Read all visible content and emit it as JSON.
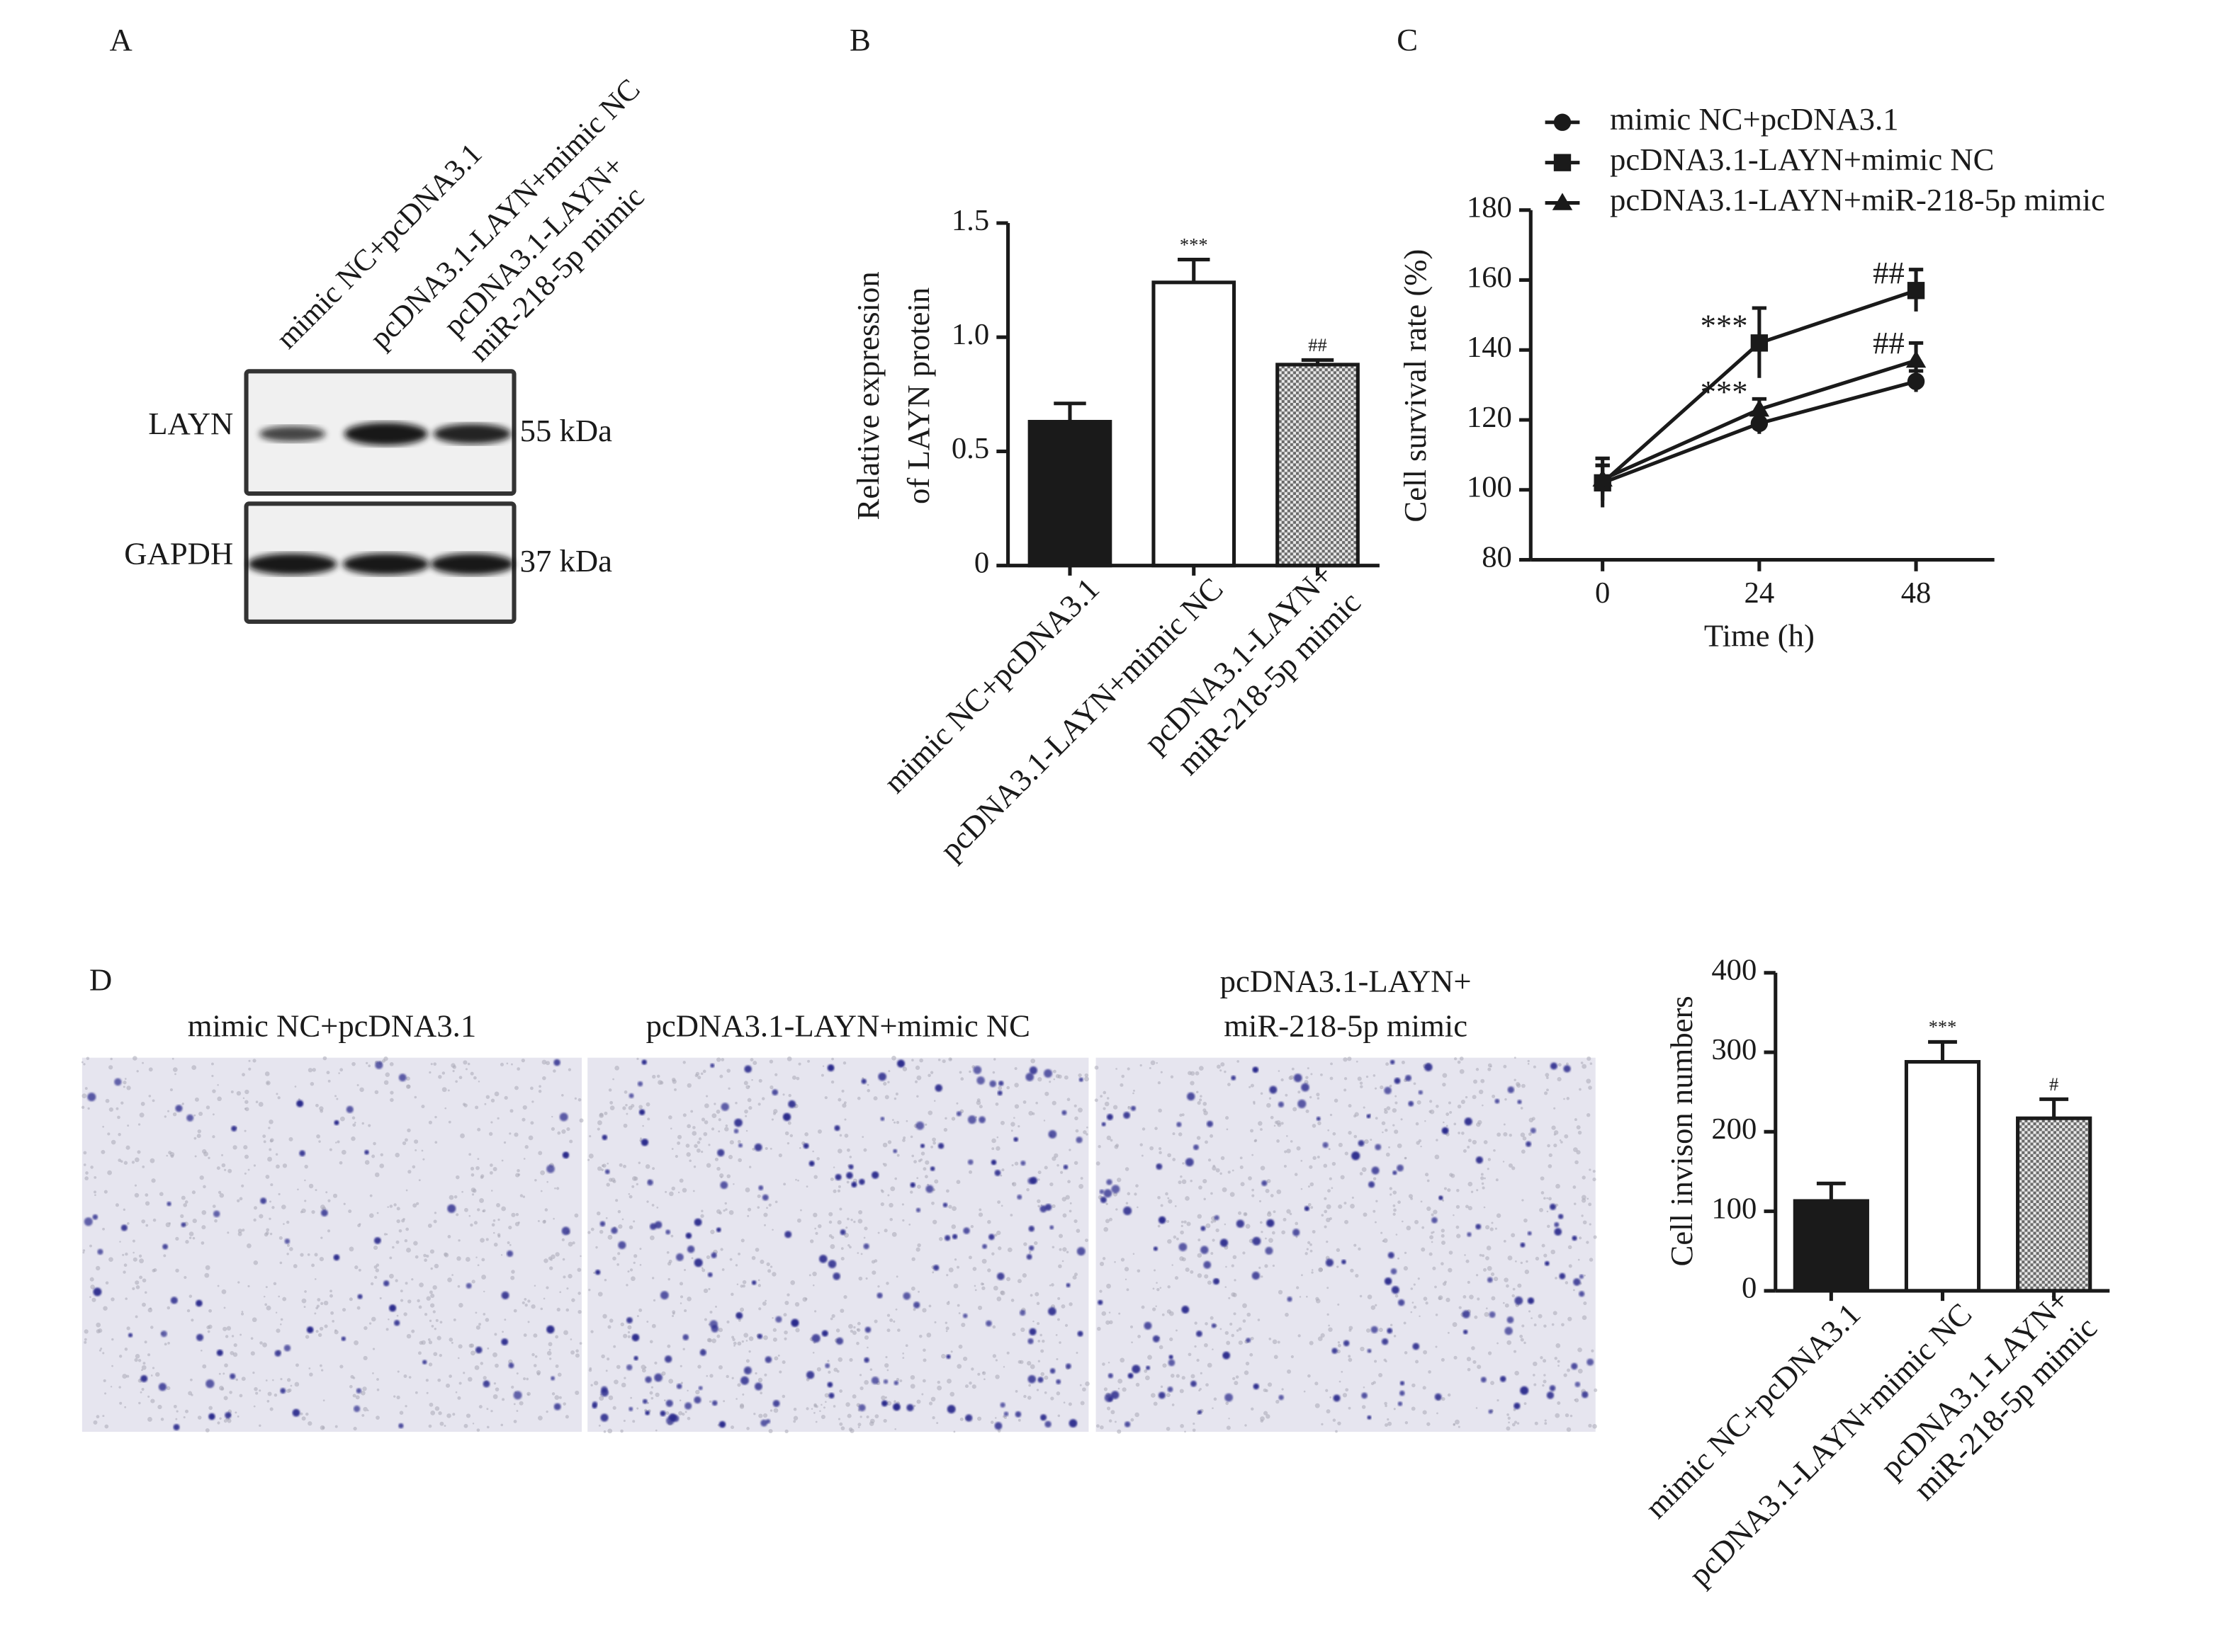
{
  "blot": {
    "panel_label": "A",
    "lanes": [
      [
        "mimic NC+pcDNA3.1"
      ],
      [
        "pcDNA3.1-LAYN+mimic NC"
      ],
      [
        "pcDNA3.1-LAYN+",
        "miR-218-5p mimic"
      ]
    ],
    "rows": [
      {
        "name": "LAYN",
        "size": "55 kDa"
      },
      {
        "name": "GAPDH",
        "size": "37 kDa"
      }
    ]
  },
  "micrographs": {
    "panel_label": "D",
    "captions": [
      [
        "mimic NC+pcDNA3.1"
      ],
      [
        "pcDNA3.1-LAYN+mimic NC"
      ],
      [
        "pcDNA3.1-LAYN+",
        "miR-218-5p mimic"
      ]
    ]
  },
  "chart_data": [
    {
      "type": "bar",
      "panel_label": "B",
      "ylabel": [
        "Relative expression",
        "of LAYN protein"
      ],
      "categories": [
        [
          "mimic NC+pcDNA3.1"
        ],
        [
          "pcDNA3.1-LAYN+mimic NC"
        ],
        [
          "pcDNA3.1-LAYN+",
          "miR-218-5p mimic"
        ]
      ],
      "values": [
        0.63,
        1.24,
        0.88
      ],
      "errors": [
        0.08,
        0.1,
        0.02
      ],
      "labels": [
        null,
        "***",
        "##"
      ],
      "colors": [
        "#1a1a1a",
        "#ffffff",
        "#a8a8a8"
      ],
      "hatch": [
        false,
        false,
        true
      ],
      "ylim": [
        0,
        1.5
      ],
      "yticks": [
        0,
        0.5,
        {
          "value": 1,
          "label": "1.0"
        },
        1.5
      ]
    },
    {
      "type": "line",
      "panel_label": "C",
      "xlabel": "Time (h)",
      "ylabel": "Cell survival rate (%)",
      "x": [
        0,
        24,
        48
      ],
      "xlim": [
        -11,
        60
      ],
      "xticks": [
        0,
        24,
        48
      ],
      "ylim": [
        80,
        180
      ],
      "yticks": [
        80,
        100,
        120,
        140,
        160,
        180
      ],
      "legend": "top-left",
      "series": [
        {
          "name": "mimic NC+pcDNA3.1",
          "color": "#1a1a1a",
          "marker": "circle",
          "values": [
            102,
            119,
            131
          ],
          "errors": [
            5,
            3,
            3
          ],
          "labels": [
            null,
            null,
            null
          ]
        },
        {
          "name": "pcDNA3.1-LAYN+mimic NC",
          "color": "#1a1a1a",
          "marker": "square",
          "values": [
            102,
            142,
            157
          ],
          "errors": [
            7,
            10,
            6
          ],
          "labels": [
            null,
            "***",
            "##"
          ]
        },
        {
          "name": "pcDNA3.1-LAYN+miR-218-5p mimic",
          "color": "#1a1a1a",
          "marker": "triangle",
          "values": [
            103,
            123,
            137
          ],
          "errors": [
            4,
            3,
            5
          ],
          "labels": [
            null,
            "***",
            "##"
          ]
        }
      ]
    },
    {
      "type": "bar",
      "ylabel": [
        "Cell invison numbers"
      ],
      "categories": [
        [
          "mimic NC+pcDNA3.1"
        ],
        [
          "pcDNA3.1-LAYN+mimic NC"
        ],
        [
          "pcDNA3.1-LAYN+",
          "miR-218-5p mimic"
        ]
      ],
      "values": [
        113,
        288,
        217
      ],
      "errors": [
        22,
        25,
        24
      ],
      "labels": [
        null,
        "***",
        "#"
      ],
      "colors": [
        "#1a1a1a",
        "#ffffff",
        "#a8a8a8"
      ],
      "hatch": [
        false,
        false,
        true
      ],
      "ylim": [
        0,
        400
      ],
      "yticks": [
        0,
        100,
        200,
        300,
        400
      ]
    }
  ]
}
